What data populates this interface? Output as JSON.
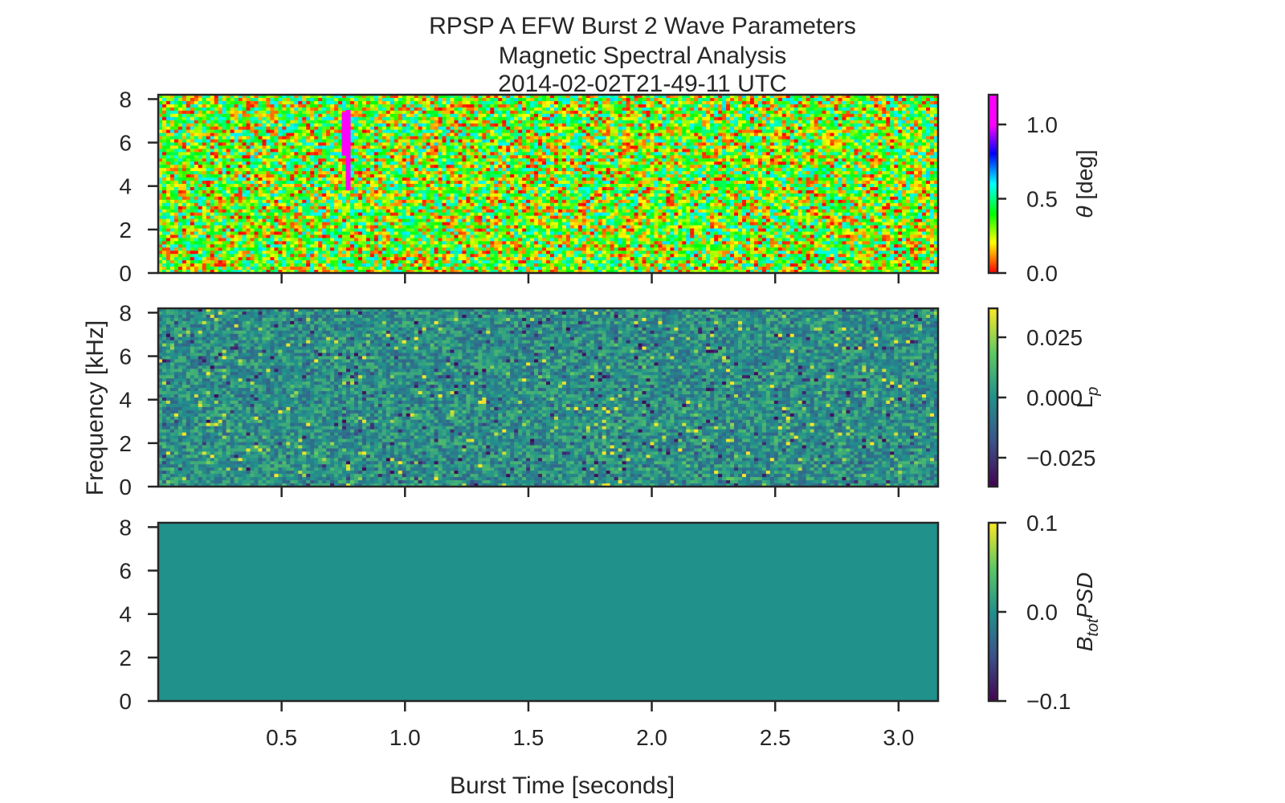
{
  "figure": {
    "title_lines": [
      "RPSP A EFW Burst 2 Wave Parameters",
      "Magnetic Spectral Analysis",
      "2014-02-02T21-49-11 UTC"
    ],
    "xlabel": "Burst Time [seconds]",
    "ylabel": "Frequency [kHz]"
  },
  "chart_data": [
    {
      "type": "heatmap",
      "panel": "theta",
      "title": "",
      "xlabel": "",
      "ylabel": "",
      "xlim": [
        0.0,
        3.16
      ],
      "ylim": [
        0,
        8.2
      ],
      "x_ticks": [
        0.5,
        1.0,
        1.5,
        2.0,
        2.5,
        3.0
      ],
      "x_tick_labels": [],
      "y_ticks": [
        0,
        2,
        4,
        6,
        8
      ],
      "y_tick_labels": [
        "0",
        "2",
        "4",
        "6",
        "8"
      ],
      "colormap": "hsv",
      "colorbar": {
        "label_base": "θ",
        "label_suffix": " [deg]",
        "clim": [
          0.0,
          1.2
        ],
        "ticks": [
          0.0,
          0.5,
          1.0
        ],
        "tick_labels": [
          "0.0",
          "0.5",
          "1.0"
        ]
      },
      "features": [
        {
          "description": "magenta streak",
          "x": 0.76,
          "y_range": [
            3.8,
            7.5
          ]
        }
      ]
    },
    {
      "type": "heatmap",
      "panel": "Lp",
      "title": "",
      "xlabel": "",
      "ylabel": "",
      "xlim": [
        0.0,
        3.16
      ],
      "ylim": [
        0,
        8.2
      ],
      "x_ticks": [
        0.5,
        1.0,
        1.5,
        2.0,
        2.5,
        3.0
      ],
      "x_tick_labels": [],
      "y_ticks": [
        0,
        2,
        4,
        6,
        8
      ],
      "y_tick_labels": [
        "0",
        "2",
        "4",
        "6",
        "8"
      ],
      "colormap": "viridis",
      "colorbar": {
        "label_base": "L",
        "label_sub": "p",
        "clim": [
          -0.037,
          0.037
        ],
        "ticks": [
          -0.025,
          0.0,
          0.025
        ],
        "tick_labels": [
          "−0.025",
          "0.000",
          "0.025"
        ]
      }
    },
    {
      "type": "heatmap",
      "panel": "BtotPSD",
      "title": "",
      "xlabel": "Burst Time [seconds]",
      "ylabel": "",
      "xlim": [
        0.0,
        3.16
      ],
      "ylim": [
        0,
        8.2
      ],
      "x_ticks": [
        0.5,
        1.0,
        1.5,
        2.0,
        2.5,
        3.0
      ],
      "x_tick_labels": [
        "0.5",
        "1.0",
        "1.5",
        "2.0",
        "2.5",
        "3.0"
      ],
      "y_ticks": [
        0,
        2,
        4,
        6,
        8
      ],
      "y_tick_labels": [
        "0",
        "2",
        "4",
        "6",
        "8"
      ],
      "colormap": "viridis",
      "uniform_value": 0.0,
      "colorbar": {
        "label_base": "B",
        "label_sub": "tot",
        "label_suffix": "PSD",
        "clim": [
          -0.1,
          0.1
        ],
        "ticks": [
          -0.1,
          0.0,
          0.1
        ],
        "tick_labels": [
          "−0.1",
          "0.0",
          "0.1"
        ]
      }
    }
  ]
}
